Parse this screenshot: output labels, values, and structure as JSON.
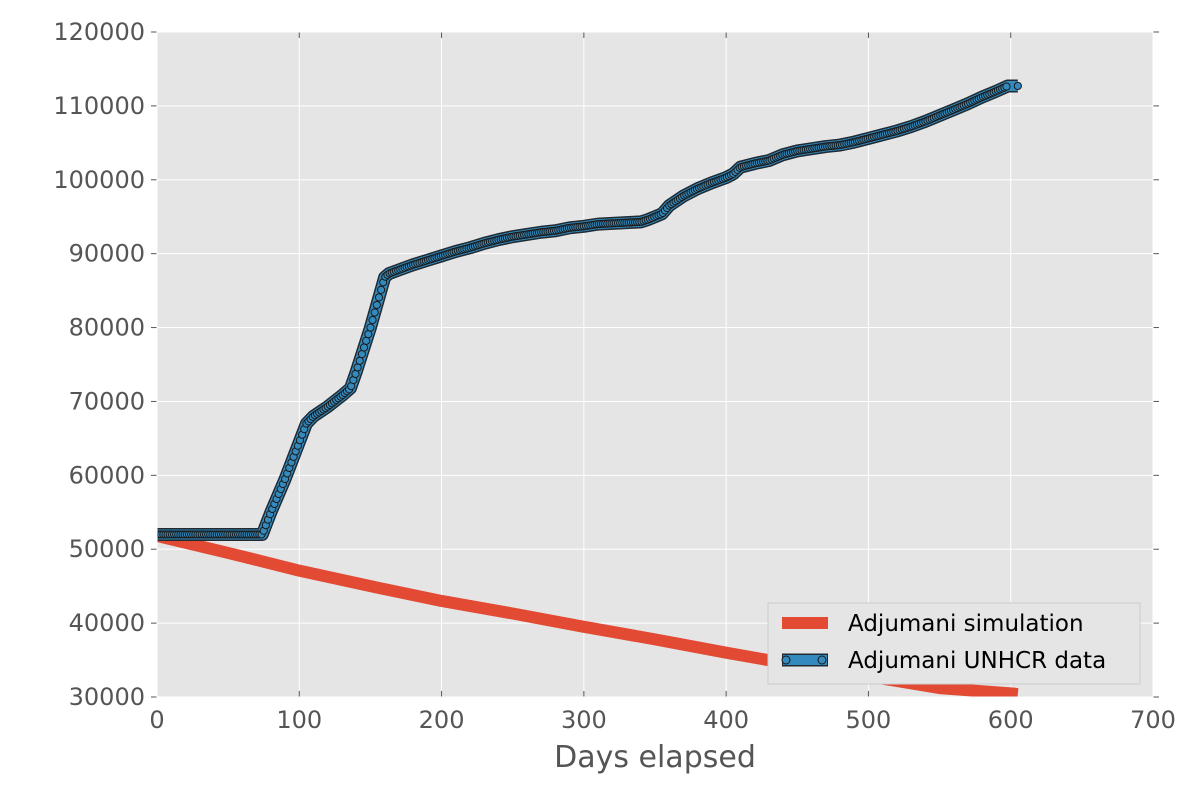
{
  "chart_data": {
    "type": "line",
    "title": "",
    "xlabel": "Days elapsed",
    "ylabel": "",
    "xlim": [
      0,
      700
    ],
    "ylim": [
      30000,
      120000
    ],
    "xticks": [
      "0",
      "100",
      "200",
      "300",
      "400",
      "500",
      "600",
      "700"
    ],
    "yticks": [
      "30000",
      "40000",
      "50000",
      "60000",
      "70000",
      "80000",
      "90000",
      "100000",
      "110000",
      "120000"
    ],
    "grid": true,
    "legend_position": "bottom-right",
    "background_color": "#e5e5e5",
    "series": [
      {
        "name": "Adjumani simulation",
        "color": "#e24a33",
        "marker": "none",
        "x": [
          0,
          50,
          100,
          150,
          200,
          250,
          300,
          350,
          400,
          450,
          500,
          550,
          600,
          605
        ],
        "y": [
          51800,
          49500,
          47100,
          45000,
          43000,
          41300,
          39500,
          37800,
          36000,
          34300,
          32800,
          31200,
          30500,
          30400
        ]
      },
      {
        "name": "Adjumani UNHCR data",
        "color": "#348abd",
        "marker": "circle",
        "x": [
          0,
          10,
          20,
          30,
          40,
          50,
          60,
          70,
          74,
          80,
          90,
          100,
          105,
          110,
          120,
          130,
          136,
          140,
          150,
          160,
          163,
          170,
          180,
          190,
          200,
          210,
          220,
          230,
          240,
          250,
          260,
          270,
          280,
          290,
          300,
          310,
          320,
          330,
          340,
          345,
          350,
          355,
          360,
          370,
          380,
          390,
          400,
          405,
          410,
          420,
          430,
          440,
          450,
          460,
          470,
          480,
          490,
          500,
          510,
          520,
          530,
          540,
          550,
          560,
          570,
          580,
          590,
          598,
          605
        ],
        "y": [
          52000,
          52000,
          52000,
          52000,
          52000,
          52000,
          52000,
          52000,
          52000,
          55000,
          59500,
          64500,
          67000,
          68000,
          69300,
          70800,
          71800,
          74000,
          80000,
          86800,
          87300,
          87800,
          88500,
          89100,
          89700,
          90300,
          90800,
          91400,
          91900,
          92300,
          92600,
          92900,
          93100,
          93500,
          93700,
          94000,
          94100,
          94200,
          94300,
          94600,
          95000,
          95400,
          96500,
          97800,
          98800,
          99600,
          100300,
          100800,
          101700,
          102200,
          102600,
          103400,
          103900,
          104200,
          104500,
          104700,
          105100,
          105600,
          106100,
          106600,
          107200,
          107900,
          108700,
          109500,
          110300,
          111200,
          112000,
          112700,
          112700
        ]
      }
    ]
  }
}
